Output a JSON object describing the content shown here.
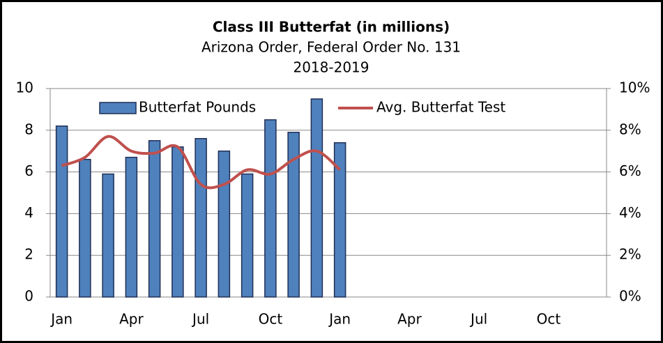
{
  "chart_data": {
    "type": "bar_line",
    "title": "Class III Butterfat (in millions)",
    "subtitle": [
      "Arizona Order, Federal Order No. 131",
      "2018-2019"
    ],
    "categories": [
      "Jan",
      null,
      null,
      "Apr",
      null,
      null,
      "Jul",
      null,
      null,
      "Oct",
      null,
      null,
      "Jan",
      null,
      null,
      "Apr",
      null,
      null,
      "Jul",
      null,
      null,
      "Oct",
      null,
      null
    ],
    "series": [
      {
        "name": "Butterfat Pounds",
        "type": "bar",
        "color": "#4f81bd",
        "edge_color": "#1f2f55",
        "values": [
          8.2,
          6.6,
          5.9,
          6.7,
          7.5,
          7.2,
          7.6,
          7.0,
          5.9,
          8.5,
          7.9,
          9.5,
          7.4,
          null,
          null,
          null,
          null,
          null,
          null,
          null,
          null,
          null,
          null,
          null
        ]
      },
      {
        "name": "Avg. Butterfat Test",
        "type": "line",
        "axis": "y2",
        "color": "#c0504d",
        "values": [
          6.3,
          6.7,
          7.7,
          7.0,
          6.9,
          7.2,
          5.4,
          5.4,
          6.1,
          5.9,
          6.6,
          7.0,
          6.1,
          null,
          null,
          null,
          null,
          null,
          null,
          null,
          null,
          null,
          null,
          null
        ]
      }
    ],
    "ylim": [
      0,
      10
    ],
    "yticks": [
      0,
      2,
      4,
      6,
      8,
      10
    ],
    "y2lim": [
      0,
      10
    ],
    "y2ticks": [
      {
        "value": 0,
        "label": "0%"
      },
      {
        "value": 2,
        "label": "2%"
      },
      {
        "value": 4,
        "label": "4%"
      },
      {
        "value": 6,
        "label": "6%"
      },
      {
        "value": 8,
        "label": "8%"
      },
      {
        "value": 10,
        "label": "10%"
      }
    ],
    "grid": true,
    "legend": "top"
  }
}
